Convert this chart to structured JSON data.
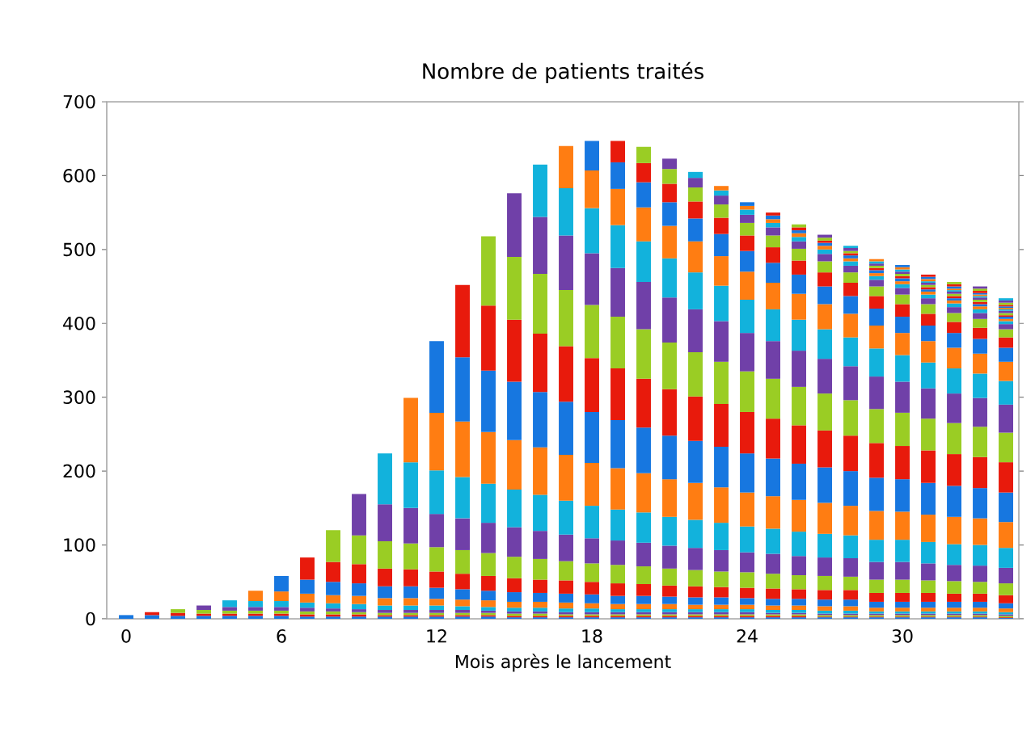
{
  "chart_data": {
    "type": "bar",
    "stacked": true,
    "title": "Nombre de patients traités",
    "xlabel": "Mois après le lancement",
    "x": [
      0,
      1,
      2,
      3,
      4,
      5,
      6,
      7,
      8,
      9,
      10,
      11,
      12,
      13,
      14,
      15,
      16,
      17,
      18,
      19,
      20,
      21,
      22,
      23,
      24,
      25,
      26,
      27,
      28,
      29,
      30,
      31,
      32,
      33,
      34
    ],
    "xlim": [
      -0.75,
      34.5
    ],
    "xticks": [
      0,
      6,
      12,
      18,
      24,
      30
    ],
    "ylim": [
      0,
      700
    ],
    "yticks": [
      0,
      100,
      200,
      300,
      400,
      500,
      600,
      700
    ],
    "series": [
      {
        "color": "#1777e0",
        "values": [
          5,
          5,
          4,
          4,
          4,
          4,
          4,
          3,
          3,
          3,
          3,
          3,
          3,
          3,
          3,
          2,
          2,
          2,
          2,
          2,
          2,
          2,
          2,
          2,
          2,
          2,
          2,
          2,
          2,
          2,
          2,
          2,
          2,
          2,
          1
        ]
      },
      {
        "color": "#e81a0c",
        "values": [
          null,
          4,
          4,
          3,
          3,
          3,
          3,
          3,
          3,
          3,
          2,
          2,
          2,
          2,
          2,
          2,
          2,
          2,
          2,
          2,
          2,
          2,
          2,
          2,
          2,
          2,
          2,
          1,
          1,
          1,
          1,
          1,
          1,
          1,
          1
        ]
      },
      {
        "color": "#9acd24",
        "values": [
          null,
          null,
          5,
          5,
          4,
          4,
          4,
          4,
          4,
          3,
          3,
          3,
          3,
          3,
          3,
          3,
          3,
          2,
          2,
          2,
          2,
          2,
          2,
          2,
          2,
          2,
          2,
          2,
          2,
          2,
          2,
          2,
          2,
          2,
          2
        ]
      },
      {
        "color": "#7040a8",
        "values": [
          null,
          null,
          null,
          6,
          5,
          5,
          5,
          5,
          4,
          4,
          4,
          4,
          4,
          4,
          3,
          3,
          3,
          3,
          3,
          3,
          3,
          3,
          3,
          3,
          3,
          2,
          2,
          2,
          2,
          2,
          2,
          2,
          2,
          2,
          2
        ]
      },
      {
        "color": "#12b2dc",
        "values": [
          null,
          null,
          null,
          null,
          9,
          8,
          8,
          7,
          7,
          7,
          6,
          6,
          6,
          5,
          5,
          5,
          5,
          5,
          5,
          4,
          4,
          4,
          4,
          4,
          4,
          4,
          4,
          4,
          4,
          3,
          3,
          3,
          3,
          3,
          3
        ]
      },
      {
        "color": "#ff7d12",
        "values": [
          null,
          null,
          null,
          null,
          null,
          14,
          13,
          12,
          11,
          11,
          10,
          10,
          9,
          9,
          9,
          8,
          8,
          8,
          7,
          7,
          7,
          7,
          6,
          6,
          6,
          6,
          6,
          6,
          6,
          5,
          5,
          5,
          5,
          5,
          5
        ]
      },
      {
        "color": "#1777e0",
        "values": [
          null,
          null,
          null,
          null,
          null,
          null,
          21,
          19,
          18,
          17,
          16,
          16,
          15,
          14,
          13,
          13,
          12,
          12,
          12,
          11,
          11,
          10,
          10,
          10,
          9,
          9,
          9,
          9,
          9,
          8,
          8,
          8,
          8,
          8,
          7
        ]
      },
      {
        "color": "#e81a0c",
        "values": [
          null,
          null,
          null,
          null,
          null,
          null,
          null,
          30,
          27,
          26,
          24,
          23,
          22,
          21,
          20,
          19,
          18,
          18,
          17,
          17,
          16,
          15,
          15,
          14,
          14,
          14,
          13,
          13,
          13,
          12,
          12,
          12,
          11,
          11,
          11
        ]
      },
      {
        "color": "#9acd24",
        "values": [
          null,
          null,
          null,
          null,
          null,
          null,
          null,
          null,
          43,
          39,
          37,
          35,
          33,
          32,
          31,
          29,
          28,
          26,
          25,
          25,
          24,
          23,
          22,
          21,
          21,
          20,
          19,
          19,
          18,
          18,
          18,
          17,
          17,
          16,
          16
        ]
      },
      {
        "color": "#7040a8",
        "values": [
          null,
          null,
          null,
          null,
          null,
          null,
          null,
          null,
          null,
          56,
          50,
          48,
          45,
          43,
          41,
          40,
          38,
          36,
          34,
          33,
          32,
          31,
          30,
          29,
          27,
          27,
          26,
          25,
          25,
          24,
          24,
          23,
          22,
          22,
          21
        ]
      },
      {
        "color": "#12b2dc",
        "values": [
          null,
          null,
          null,
          null,
          null,
          null,
          null,
          null,
          null,
          null,
          69,
          62,
          59,
          56,
          53,
          51,
          49,
          46,
          44,
          42,
          41,
          39,
          38,
          37,
          35,
          34,
          33,
          32,
          31,
          30,
          30,
          29,
          28,
          28,
          27
        ]
      },
      {
        "color": "#ff7d12",
        "values": [
          null,
          null,
          null,
          null,
          null,
          null,
          null,
          null,
          null,
          null,
          null,
          87,
          78,
          75,
          70,
          67,
          64,
          62,
          58,
          56,
          53,
          51,
          50,
          48,
          46,
          44,
          43,
          42,
          40,
          39,
          38,
          37,
          37,
          36,
          35
        ]
      },
      {
        "color": "#1777e0",
        "values": [
          null,
          null,
          null,
          null,
          null,
          null,
          null,
          null,
          null,
          null,
          null,
          null,
          97,
          87,
          83,
          79,
          75,
          72,
          69,
          65,
          62,
          59,
          57,
          55,
          53,
          51,
          49,
          48,
          47,
          45,
          44,
          43,
          42,
          41,
          40
        ]
      },
      {
        "color": "#e81a0c",
        "values": [
          null,
          null,
          null,
          null,
          null,
          null,
          null,
          null,
          null,
          null,
          null,
          null,
          null,
          98,
          88,
          84,
          79,
          75,
          73,
          70,
          66,
          63,
          60,
          58,
          56,
          54,
          52,
          50,
          48,
          47,
          45,
          44,
          43,
          42,
          41
        ]
      },
      {
        "color": "#9acd24",
        "values": [
          null,
          null,
          null,
          null,
          null,
          null,
          null,
          null,
          null,
          null,
          null,
          null,
          null,
          null,
          94,
          85,
          81,
          76,
          72,
          70,
          67,
          63,
          60,
          57,
          55,
          54,
          52,
          50,
          48,
          46,
          45,
          43,
          42,
          41,
          40
        ]
      },
      {
        "color": "#7040a8",
        "values": [
          null,
          null,
          null,
          null,
          null,
          null,
          null,
          null,
          null,
          null,
          null,
          null,
          null,
          null,
          null,
          86,
          77,
          74,
          70,
          66,
          64,
          61,
          58,
          55,
          52,
          51,
          49,
          47,
          46,
          44,
          42,
          41,
          40,
          39,
          38
        ]
      },
      {
        "color": "#12b2dc",
        "values": [
          null,
          null,
          null,
          null,
          null,
          null,
          null,
          null,
          null,
          null,
          null,
          null,
          null,
          null,
          null,
          null,
          71,
          64,
          61,
          58,
          55,
          53,
          50,
          48,
          45,
          43,
          42,
          40,
          39,
          38,
          36,
          35,
          34,
          33,
          32
        ]
      },
      {
        "color": "#ff7d12",
        "values": [
          null,
          null,
          null,
          null,
          null,
          null,
          null,
          null,
          null,
          null,
          null,
          null,
          null,
          null,
          null,
          null,
          null,
          57,
          51,
          49,
          46,
          44,
          42,
          40,
          38,
          36,
          35,
          34,
          32,
          31,
          30,
          29,
          28,
          27,
          26
        ]
      },
      {
        "color": "#1777e0",
        "values": [
          null,
          null,
          null,
          null,
          null,
          null,
          null,
          null,
          null,
          null,
          null,
          null,
          null,
          null,
          null,
          null,
          null,
          null,
          40,
          36,
          34,
          32,
          31,
          30,
          28,
          27,
          26,
          24,
          24,
          23,
          22,
          21,
          20,
          20,
          19
        ]
      },
      {
        "color": "#e81a0c",
        "values": [
          null,
          null,
          null,
          null,
          null,
          null,
          null,
          null,
          null,
          null,
          null,
          null,
          null,
          null,
          null,
          null,
          null,
          null,
          null,
          29,
          26,
          25,
          23,
          22,
          21,
          21,
          19,
          19,
          18,
          17,
          17,
          16,
          15,
          15,
          14
        ]
      },
      {
        "color": "#9acd24",
        "values": [
          null,
          null,
          null,
          null,
          null,
          null,
          null,
          null,
          null,
          null,
          null,
          null,
          null,
          null,
          null,
          null,
          null,
          null,
          null,
          null,
          22,
          20,
          19,
          18,
          17,
          16,
          16,
          15,
          14,
          13,
          13,
          13,
          12,
          12,
          11
        ]
      },
      {
        "color": "#7040a8",
        "values": [
          null,
          null,
          null,
          null,
          null,
          null,
          null,
          null,
          null,
          null,
          null,
          null,
          null,
          null,
          null,
          null,
          null,
          null,
          null,
          null,
          null,
          14,
          13,
          12,
          11,
          11,
          10,
          10,
          9,
          9,
          9,
          8,
          8,
          8,
          7
        ]
      },
      {
        "color": "#12b2dc",
        "values": [
          null,
          null,
          null,
          null,
          null,
          null,
          null,
          null,
          null,
          null,
          null,
          null,
          null,
          null,
          null,
          null,
          null,
          null,
          null,
          null,
          null,
          null,
          8,
          7,
          7,
          6,
          6,
          6,
          6,
          5,
          5,
          5,
          5,
          5,
          4
        ]
      },
      {
        "color": "#ff7d12",
        "values": [
          null,
          null,
          null,
          null,
          null,
          null,
          null,
          null,
          null,
          null,
          null,
          null,
          null,
          null,
          null,
          null,
          null,
          null,
          null,
          null,
          null,
          null,
          null,
          6,
          5,
          5,
          5,
          5,
          4,
          4,
          4,
          4,
          4,
          4,
          3
        ]
      },
      {
        "color": "#1777e0",
        "values": [
          null,
          null,
          null,
          null,
          null,
          null,
          null,
          null,
          null,
          null,
          null,
          null,
          null,
          null,
          null,
          null,
          null,
          null,
          null,
          null,
          null,
          null,
          null,
          null,
          5,
          5,
          4,
          4,
          4,
          4,
          4,
          3,
          3,
          3,
          3
        ]
      },
      {
        "color": "#e81a0c",
        "values": [
          null,
          null,
          null,
          null,
          null,
          null,
          null,
          null,
          null,
          null,
          null,
          null,
          null,
          null,
          null,
          null,
          null,
          null,
          null,
          null,
          null,
          null,
          null,
          null,
          null,
          4,
          4,
          3,
          3,
          3,
          3,
          3,
          3,
          3,
          2
        ]
      },
      {
        "color": "#9acd24",
        "values": [
          null,
          null,
          null,
          null,
          null,
          null,
          null,
          null,
          null,
          null,
          null,
          null,
          null,
          null,
          null,
          null,
          null,
          null,
          null,
          null,
          null,
          null,
          null,
          null,
          null,
          null,
          4,
          4,
          3,
          3,
          3,
          3,
          3,
          3,
          3
        ]
      },
      {
        "color": "#7040a8",
        "values": [
          null,
          null,
          null,
          null,
          null,
          null,
          null,
          null,
          null,
          null,
          null,
          null,
          null,
          null,
          null,
          null,
          null,
          null,
          null,
          null,
          null,
          null,
          null,
          null,
          null,
          null,
          null,
          4,
          4,
          3,
          3,
          3,
          3,
          3,
          3
        ]
      },
      {
        "color": "#12b2dc",
        "values": [
          null,
          null,
          null,
          null,
          null,
          null,
          null,
          null,
          null,
          null,
          null,
          null,
          null,
          null,
          null,
          null,
          null,
          null,
          null,
          null,
          null,
          null,
          null,
          null,
          null,
          null,
          null,
          null,
          3,
          3,
          3,
          2,
          2,
          2,
          2
        ]
      },
      {
        "color": "#ff7d12",
        "values": [
          null,
          null,
          null,
          null,
          null,
          null,
          null,
          null,
          null,
          null,
          null,
          null,
          null,
          null,
          null,
          null,
          null,
          null,
          null,
          null,
          null,
          null,
          null,
          null,
          null,
          null,
          null,
          null,
          null,
          3,
          3,
          3,
          2,
          2,
          2
        ]
      },
      {
        "color": "#1777e0",
        "values": [
          null,
          null,
          null,
          null,
          null,
          null,
          null,
          null,
          null,
          null,
          null,
          null,
          null,
          null,
          null,
          null,
          null,
          null,
          null,
          null,
          null,
          null,
          null,
          null,
          null,
          null,
          null,
          null,
          null,
          null,
          3,
          3,
          3,
          2,
          2
        ]
      },
      {
        "color": "#e81a0c",
        "values": [
          null,
          null,
          null,
          null,
          null,
          null,
          null,
          null,
          null,
          null,
          null,
          null,
          null,
          null,
          null,
          null,
          null,
          null,
          null,
          null,
          null,
          null,
          null,
          null,
          null,
          null,
          null,
          null,
          null,
          null,
          null,
          3,
          3,
          3,
          2
        ]
      },
      {
        "color": "#9acd24",
        "values": [
          null,
          null,
          null,
          null,
          null,
          null,
          null,
          null,
          null,
          null,
          null,
          null,
          null,
          null,
          null,
          null,
          null,
          null,
          null,
          null,
          null,
          null,
          null,
          null,
          null,
          null,
          null,
          null,
          null,
          null,
          null,
          null,
          3,
          3,
          3
        ]
      },
      {
        "color": "#7040a8",
        "values": [
          null,
          null,
          null,
          null,
          null,
          null,
          null,
          null,
          null,
          null,
          null,
          null,
          null,
          null,
          null,
          null,
          null,
          null,
          null,
          null,
          null,
          null,
          null,
          null,
          null,
          null,
          null,
          null,
          null,
          null,
          null,
          null,
          null,
          3,
          3
        ]
      },
      {
        "color": "#12b2dc",
        "values": [
          null,
          null,
          null,
          null,
          null,
          null,
          null,
          null,
          null,
          null,
          null,
          null,
          null,
          null,
          null,
          null,
          null,
          null,
          null,
          null,
          null,
          null,
          null,
          null,
          null,
          null,
          null,
          null,
          null,
          null,
          null,
          null,
          null,
          null,
          3
        ]
      }
    ]
  }
}
